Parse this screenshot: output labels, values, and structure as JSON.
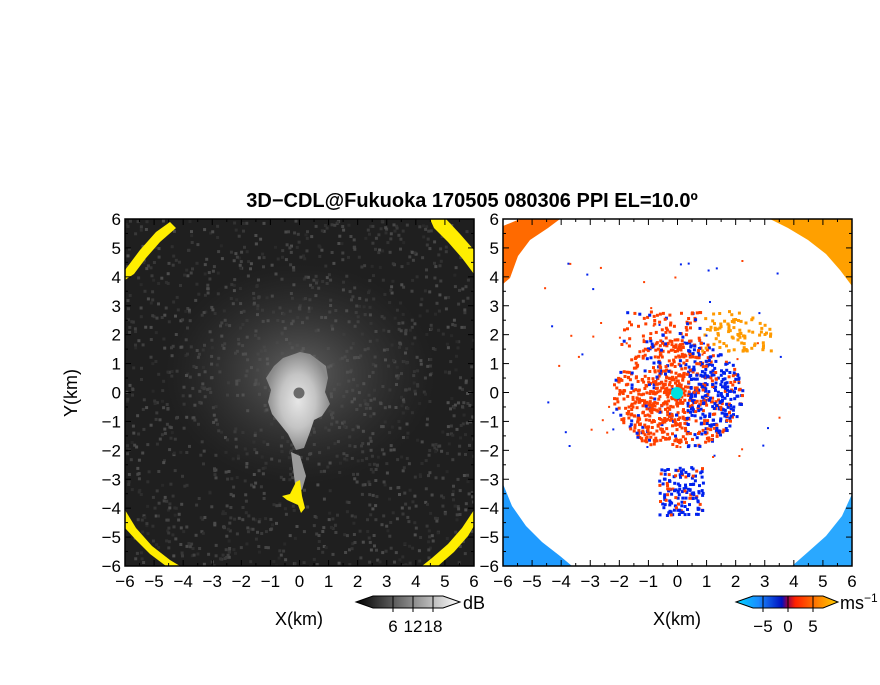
{
  "title": "3D−CDL@Fukuoka 170505 080306 PPI EL=10.0º",
  "chart_data": [
    {
      "type": "heatmap",
      "name": "",
      "xlabel": "X(km)",
      "ylabel": "Y(km)",
      "xlim": [
        -6,
        6
      ],
      "ylim": [
        -6,
        6
      ],
      "xticks": [
        "−6",
        "−5",
        "−4",
        "−3",
        "−2",
        "−1",
        "0",
        "1",
        "2",
        "3",
        "4",
        "5",
        "6"
      ],
      "yticks": [
        "6",
        "5",
        "4",
        "3",
        "2",
        "1",
        "0",
        "−1",
        "−2",
        "−3",
        "−4",
        "−5",
        "−6"
      ],
      "radar_center": [
        0,
        0
      ],
      "colorbar": {
        "unit": "dB",
        "ticks": [
          "6",
          "12",
          "18"
        ],
        "range": [
          0,
          21
        ]
      },
      "colors": {
        "background": "#1e1e1e",
        "echo": "#d8d8d8",
        "high": "#ffee00"
      }
    },
    {
      "type": "heatmap",
      "name": "",
      "xlabel": "X(km)",
      "xlim": [
        -6,
        6
      ],
      "ylim": [
        -6,
        6
      ],
      "xticks": [
        "−6",
        "−5",
        "−4",
        "−3",
        "−2",
        "−1",
        "0",
        "1",
        "2",
        "3",
        "4",
        "5",
        "6"
      ],
      "yticks": [
        "6",
        "5",
        "4",
        "3",
        "2",
        "1",
        "0",
        "−1",
        "−2",
        "−3",
        "−4",
        "−5",
        "−6"
      ],
      "radar_center": [
        0,
        0
      ],
      "colorbar": {
        "unit": "ms",
        "unit_exp": "−1",
        "ticks": [
          "−5",
          "0",
          "5"
        ],
        "range": [
          -7,
          7
        ]
      },
      "colors": {
        "positive": "#ff4000",
        "negative": "#0022ee",
        "far_positive": "#ff9a00",
        "far_negative": "#1f9bff",
        "center": "#00e0e0"
      }
    }
  ]
}
